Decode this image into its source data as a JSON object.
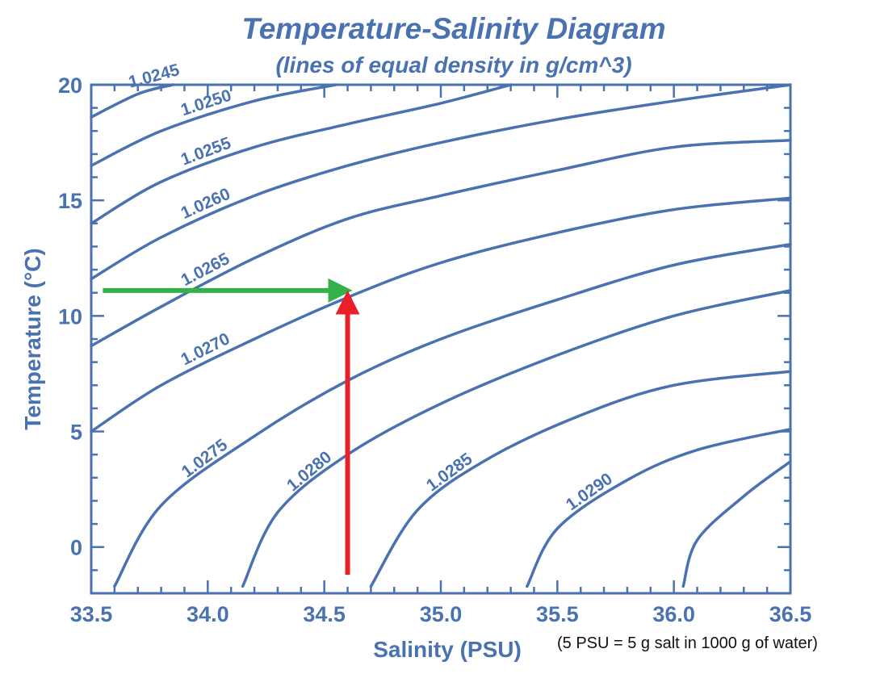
{
  "chart_data": {
    "type": "line",
    "title": "Temperature-Salinity Diagram",
    "subtitle": "(lines of equal density in g/cm^3)",
    "xlabel": "Salinity (PSU)",
    "ylabel": "Temperature (°C)",
    "xlim": [
      33.5,
      36.5
    ],
    "ylim": [
      -2,
      20
    ],
    "x_ticks": [
      33.5,
      34.0,
      34.5,
      35.0,
      35.5,
      36.0,
      36.5
    ],
    "x_tick_labels": [
      "33.5",
      "34.0",
      "34.5",
      "35.0",
      "35.5",
      "36.0",
      "36.5"
    ],
    "y_ticks": [
      0,
      5,
      10,
      15,
      20
    ],
    "y_tick_labels": [
      "0",
      "5",
      "10",
      "15",
      "20"
    ],
    "grid": false,
    "colors": {
      "contours": "#4a72b0",
      "green_arrow": "#33b24a",
      "red_arrow": "#e8202a"
    },
    "series": [
      {
        "label": "1.0245",
        "points": [
          [
            33.5,
            18.6
          ],
          [
            33.7,
            19.6
          ],
          [
            33.85,
            20.0
          ]
        ]
      },
      {
        "label": "1.0250",
        "points": [
          [
            33.5,
            16.5
          ],
          [
            33.8,
            18.0
          ],
          [
            34.2,
            19.3
          ],
          [
            34.55,
            20.0
          ]
        ]
      },
      {
        "label": "1.0255",
        "points": [
          [
            33.5,
            14.0
          ],
          [
            33.8,
            15.8
          ],
          [
            34.2,
            17.3
          ],
          [
            34.6,
            18.3
          ],
          [
            35.0,
            19.2
          ],
          [
            35.3,
            20.0
          ]
        ]
      },
      {
        "label": "1.0260",
        "points": [
          [
            33.5,
            11.6
          ],
          [
            33.8,
            13.4
          ],
          [
            34.2,
            15.2
          ],
          [
            34.6,
            16.5
          ],
          [
            35.0,
            17.5
          ],
          [
            35.5,
            18.5
          ],
          [
            36.0,
            19.3
          ],
          [
            36.5,
            20.0
          ]
        ]
      },
      {
        "label": "1.0265",
        "points": [
          [
            33.5,
            8.7
          ],
          [
            33.8,
            10.4
          ],
          [
            34.2,
            12.5
          ],
          [
            34.6,
            14.2
          ],
          [
            35.0,
            15.2
          ],
          [
            35.5,
            16.3
          ],
          [
            36.0,
            17.3
          ],
          [
            36.5,
            17.6
          ]
        ]
      },
      {
        "label": "1.0270",
        "points": [
          [
            33.5,
            5.0
          ],
          [
            33.8,
            7.0
          ],
          [
            34.2,
            9.0
          ],
          [
            34.6,
            10.8
          ],
          [
            35.0,
            12.3
          ],
          [
            35.5,
            13.6
          ],
          [
            36.0,
            14.6
          ],
          [
            36.5,
            15.1
          ]
        ]
      },
      {
        "label": "1.0275",
        "points": [
          [
            33.6,
            -1.7
          ],
          [
            33.8,
            1.8
          ],
          [
            34.2,
            4.8
          ],
          [
            34.6,
            7.2
          ],
          [
            35.0,
            9.0
          ],
          [
            35.5,
            10.7
          ],
          [
            36.0,
            12.2
          ],
          [
            36.5,
            13.1
          ]
        ]
      },
      {
        "label": "1.0280",
        "points": [
          [
            34.15,
            -1.7
          ],
          [
            34.3,
            1.5
          ],
          [
            34.6,
            4.0
          ],
          [
            35.0,
            6.2
          ],
          [
            35.5,
            8.3
          ],
          [
            36.0,
            10.0
          ],
          [
            36.5,
            11.1
          ]
        ]
      },
      {
        "label": "1.0285",
        "points": [
          [
            34.7,
            -1.7
          ],
          [
            34.9,
            1.6
          ],
          [
            35.2,
            3.8
          ],
          [
            35.6,
            5.7
          ],
          [
            36.0,
            7.0
          ],
          [
            36.5,
            7.6
          ]
        ]
      },
      {
        "label": "1.0290",
        "points": [
          [
            35.37,
            -1.7
          ],
          [
            35.5,
            0.8
          ],
          [
            35.8,
            2.9
          ],
          [
            36.1,
            4.2
          ],
          [
            36.5,
            5.1
          ]
        ]
      },
      {
        "label": "",
        "points": [
          [
            36.04,
            -1.7
          ],
          [
            36.1,
            0.3
          ],
          [
            36.3,
            2.2
          ],
          [
            36.5,
            3.7
          ]
        ]
      }
    ],
    "annotations": [
      {
        "type": "arrow",
        "color": "green",
        "from": [
          33.55,
          11.1
        ],
        "to": [
          34.6,
          11.1
        ]
      },
      {
        "type": "arrow",
        "color": "red",
        "from": [
          34.6,
          -1.2
        ],
        "to": [
          34.6,
          10.9
        ]
      }
    ]
  },
  "note": "(5 PSU = 5 g salt in 1000 g of water)"
}
